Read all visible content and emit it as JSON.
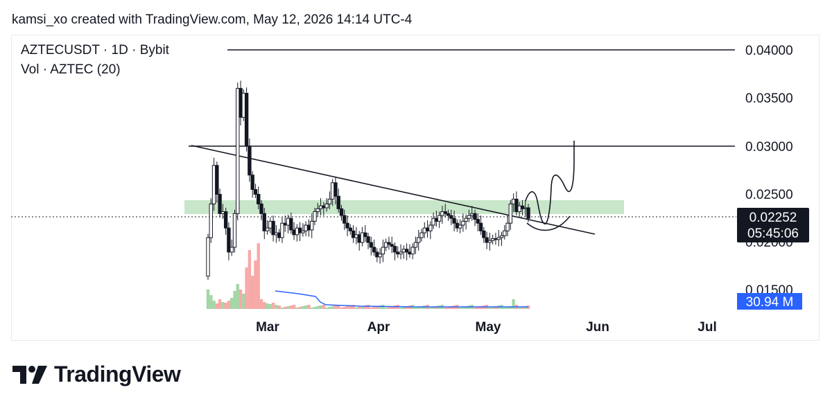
{
  "header": {
    "caption": "kamsi_xo created with TradingView.com, May 12, 2026 14:14 UTC-4"
  },
  "legend": {
    "symbol": "AZTECUSDT · 1D · Bybit",
    "volume": "Vol · AZTEC (20)"
  },
  "chart_data": {
    "type": "candlestick",
    "y_ticks": [
      "0.04000",
      "0.03500",
      "0.03000",
      "0.02500",
      "0.02000",
      "0.01500"
    ],
    "ylim": [
      0.0145,
      0.0405
    ],
    "x_ticks": [
      "Mar",
      "Apr",
      "May",
      "Jun",
      "Jul"
    ],
    "last_price": "0.02252",
    "countdown": "05:45:06",
    "volume_label": "30.94 M",
    "horizontal_levels": [
      0.04,
      0.03
    ],
    "support_zone": [
      0.0229,
      0.0244
    ],
    "colors": {
      "candle_body": "#ffffff",
      "candle_border": "#131722",
      "vol_up": "#a5d6a7",
      "vol_down": "#f7a9a8",
      "vol_ma": "#2962ff",
      "zone": "#c8e6c9",
      "price_label_bg": "#131722",
      "volume_label_bg": "#2962ff"
    },
    "volume_ma": [
      [
        0.017,
        0.0168
      ],
      [
        0.0165,
        0.0158
      ],
      [
        0.015,
        0.0149
      ]
    ]
  },
  "footer": {
    "brand": "TradingView"
  }
}
